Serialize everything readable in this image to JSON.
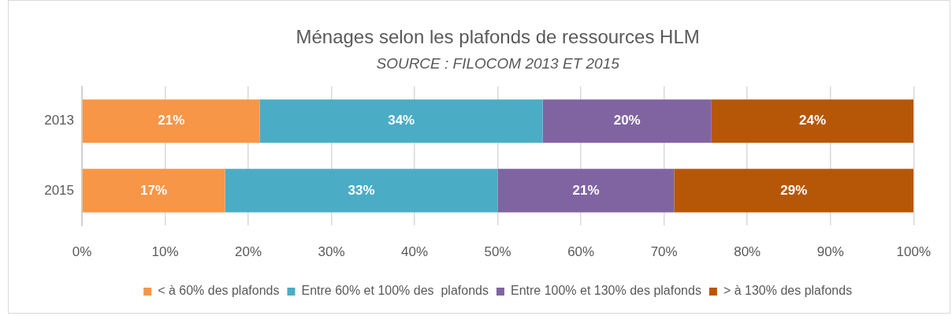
{
  "chart_data": {
    "type": "bar",
    "title": "Ménages selon les plafonds de ressources HLM",
    "subtitle": "SOURCE : FILOCOM 2013 ET 2015",
    "orientation": "horizontal",
    "stacked": true,
    "categories": [
      "2013",
      "2015"
    ],
    "series": [
      {
        "name": "< à 60% des plafonds",
        "color": "#f79646",
        "values": [
          21.4,
          17.2
        ],
        "value_labels": [
          "21%",
          "17%"
        ]
      },
      {
        "name": "Entre 60% et 100% des  plafonds",
        "color": "#4bacc6",
        "values": [
          34.0,
          32.8
        ],
        "value_labels": [
          "34%",
          "33%"
        ]
      },
      {
        "name": "Entre 100% et 130% des plafonds",
        "color": "#8064a2",
        "values": [
          20.3,
          21.2
        ],
        "value_labels": [
          "20%",
          "21%"
        ]
      },
      {
        "name": "> à 130% des plafonds",
        "color": "#b65708",
        "values": [
          24.3,
          28.8
        ],
        "value_labels": [
          "24%",
          "29%"
        ]
      }
    ],
    "xlim": [
      0,
      100
    ],
    "xticks": [
      {
        "value": 0,
        "label": "0%"
      },
      {
        "value": 10,
        "label": "10%"
      },
      {
        "value": 20,
        "label": "20%"
      },
      {
        "value": 30,
        "label": "30%"
      },
      {
        "value": 40,
        "label": "40%"
      },
      {
        "value": 50,
        "label": "50%"
      },
      {
        "value": 60,
        "label": "60%"
      },
      {
        "value": 70,
        "label": "70%"
      },
      {
        "value": 80,
        "label": "80%"
      },
      {
        "value": 90,
        "label": "90%"
      },
      {
        "value": 100,
        "label": "100%"
      }
    ],
    "grid": "x",
    "legend": "bottom"
  }
}
